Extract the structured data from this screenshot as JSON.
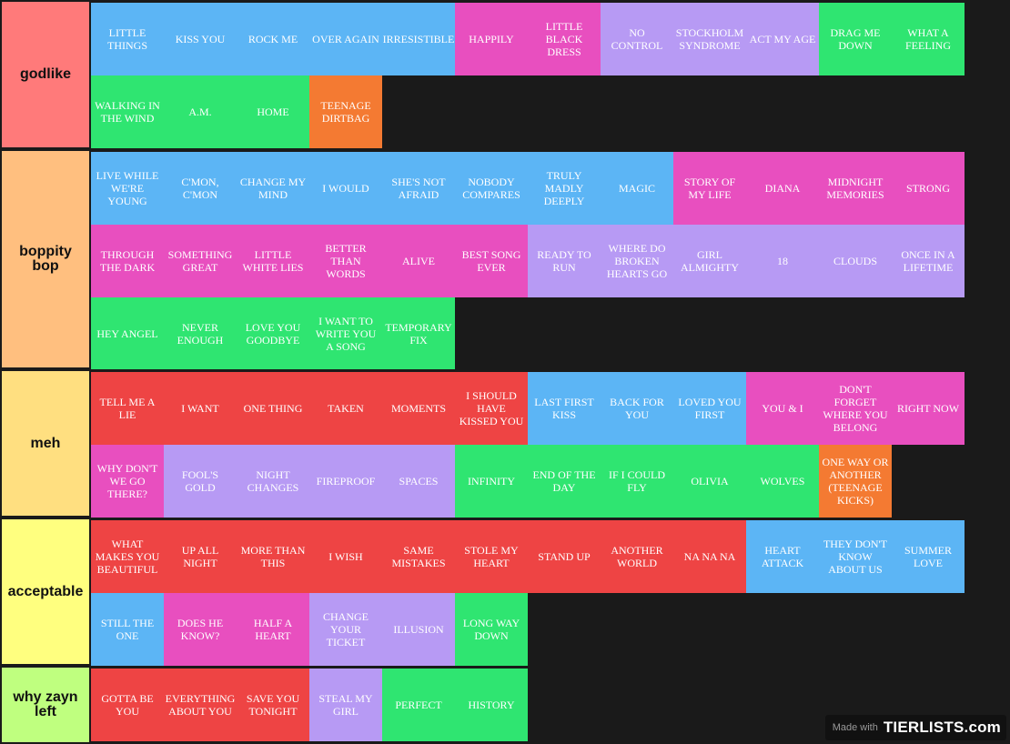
{
  "colors": {
    "blue": "#5cb5f5",
    "pink": "#e84fbf",
    "purple": "#b79af4",
    "green": "#2fe571",
    "orange": "#f47a32",
    "red": "#ee4444"
  },
  "tiers": [
    {
      "label": "godlike",
      "color": "#ff7a7a",
      "items": [
        {
          "label": "LITTLE THINGS",
          "color": "blue"
        },
        {
          "label": "KISS YOU",
          "color": "blue"
        },
        {
          "label": "ROCK ME",
          "color": "blue"
        },
        {
          "label": "OVER AGAIN",
          "color": "blue"
        },
        {
          "label": "IRRESISTIBLE",
          "color": "blue"
        },
        {
          "label": "HAPPILY",
          "color": "pink"
        },
        {
          "label": "LITTLE BLACK DRESS",
          "color": "pink"
        },
        {
          "label": "NO CONTROL",
          "color": "purple"
        },
        {
          "label": "STOCKHOLM SYNDROME",
          "color": "purple"
        },
        {
          "label": "ACT MY AGE",
          "color": "purple"
        },
        {
          "label": "DRAG ME DOWN",
          "color": "green"
        },
        {
          "label": "WHAT A FEELING",
          "color": "green"
        },
        {
          "label": "WALKING IN THE WIND",
          "color": "green"
        },
        {
          "label": "A.M.",
          "color": "green"
        },
        {
          "label": "HOME",
          "color": "green"
        },
        {
          "label": "TEENAGE DIRTBAG",
          "color": "orange"
        }
      ]
    },
    {
      "label": "boppity bop",
      "color": "#ffbf7f",
      "items": [
        {
          "label": "LIVE WHILE WE'RE YOUNG",
          "color": "blue"
        },
        {
          "label": "C'MON, C'MON",
          "color": "blue"
        },
        {
          "label": "CHANGE MY MIND",
          "color": "blue"
        },
        {
          "label": "I WOULD",
          "color": "blue"
        },
        {
          "label": "SHE'S NOT AFRAID",
          "color": "blue"
        },
        {
          "label": "NOBODY COMPARES",
          "color": "blue"
        },
        {
          "label": "TRULY MADLY DEEPLY",
          "color": "blue"
        },
        {
          "label": "MAGIC",
          "color": "blue"
        },
        {
          "label": "STORY OF MY LIFE",
          "color": "pink"
        },
        {
          "label": "DIANA",
          "color": "pink"
        },
        {
          "label": "MIDNIGHT MEMORIES",
          "color": "pink"
        },
        {
          "label": "STRONG",
          "color": "pink"
        },
        {
          "label": "THROUGH THE DARK",
          "color": "pink"
        },
        {
          "label": "SOMETHING GREAT",
          "color": "pink"
        },
        {
          "label": "LITTLE WHITE LIES",
          "color": "pink"
        },
        {
          "label": "BETTER THAN WORDS",
          "color": "pink"
        },
        {
          "label": "ALIVE",
          "color": "pink"
        },
        {
          "label": "BEST SONG EVER",
          "color": "pink"
        },
        {
          "label": "READY TO RUN",
          "color": "purple"
        },
        {
          "label": "WHERE DO BROKEN HEARTS GO",
          "color": "purple"
        },
        {
          "label": "GIRL ALMIGHTY",
          "color": "purple"
        },
        {
          "label": "18",
          "color": "purple"
        },
        {
          "label": "CLOUDS",
          "color": "purple"
        },
        {
          "label": "ONCE IN A LIFETIME",
          "color": "purple"
        },
        {
          "label": "HEY ANGEL",
          "color": "green"
        },
        {
          "label": "NEVER ENOUGH",
          "color": "green"
        },
        {
          "label": "LOVE YOU GOODBYE",
          "color": "green"
        },
        {
          "label": "I WANT TO WRITE YOU A SONG",
          "color": "green"
        },
        {
          "label": "TEMPORARY FIX",
          "color": "green"
        }
      ]
    },
    {
      "label": "meh",
      "color": "#ffdf80",
      "items": [
        {
          "label": "TELL ME A LIE",
          "color": "red"
        },
        {
          "label": "I WANT",
          "color": "red"
        },
        {
          "label": "ONE THING",
          "color": "red"
        },
        {
          "label": "TAKEN",
          "color": "red"
        },
        {
          "label": "MOMENTS",
          "color": "red"
        },
        {
          "label": "I SHOULD HAVE KISSED YOU",
          "color": "red"
        },
        {
          "label": "LAST FIRST KISS",
          "color": "blue"
        },
        {
          "label": "BACK FOR YOU",
          "color": "blue"
        },
        {
          "label": "LOVED YOU FIRST",
          "color": "blue"
        },
        {
          "label": "YOU & I",
          "color": "pink"
        },
        {
          "label": "DON'T FORGET WHERE YOU BELONG",
          "color": "pink"
        },
        {
          "label": "RIGHT NOW",
          "color": "pink"
        },
        {
          "label": "WHY DON'T WE GO THERE?",
          "color": "pink"
        },
        {
          "label": "FOOL'S GOLD",
          "color": "purple"
        },
        {
          "label": "NIGHT CHANGES",
          "color": "purple"
        },
        {
          "label": "FIREPROOF",
          "color": "purple"
        },
        {
          "label": "SPACES",
          "color": "purple"
        },
        {
          "label": "INFINITY",
          "color": "green"
        },
        {
          "label": "END OF THE DAY",
          "color": "green"
        },
        {
          "label": "IF I COULD FLY",
          "color": "green"
        },
        {
          "label": "OLIVIA",
          "color": "green"
        },
        {
          "label": "WOLVES",
          "color": "green"
        },
        {
          "label": "ONE WAY OR ANOTHER (TEENAGE KICKS)",
          "color": "orange"
        }
      ]
    },
    {
      "label": "acceptable",
      "color": "#ffff7f",
      "items": [
        {
          "label": "WHAT MAKES YOU BEAUTIFUL",
          "color": "red"
        },
        {
          "label": "UP ALL NIGHT",
          "color": "red"
        },
        {
          "label": "MORE THAN THIS",
          "color": "red"
        },
        {
          "label": "I WISH",
          "color": "red"
        },
        {
          "label": "SAME MISTAKES",
          "color": "red"
        },
        {
          "label": "STOLE MY HEART",
          "color": "red"
        },
        {
          "label": "STAND UP",
          "color": "red"
        },
        {
          "label": "ANOTHER WORLD",
          "color": "red"
        },
        {
          "label": "NA NA NA",
          "color": "red"
        },
        {
          "label": "HEART ATTACK",
          "color": "blue"
        },
        {
          "label": "THEY DON'T KNOW ABOUT US",
          "color": "blue"
        },
        {
          "label": "SUMMER LOVE",
          "color": "blue"
        },
        {
          "label": "STILL THE ONE",
          "color": "blue"
        },
        {
          "label": "DOES HE KNOW?",
          "color": "pink"
        },
        {
          "label": "HALF A HEART",
          "color": "pink"
        },
        {
          "label": "CHANGE YOUR TICKET",
          "color": "purple"
        },
        {
          "label": "ILLUSION",
          "color": "purple"
        },
        {
          "label": "LONG WAY DOWN",
          "color": "green"
        }
      ]
    },
    {
      "label": "why zayn left",
      "color": "#bfff7f",
      "items": [
        {
          "label": "GOTTA BE YOU",
          "color": "red"
        },
        {
          "label": "EVERYTHING ABOUT YOU",
          "color": "red"
        },
        {
          "label": "SAVE YOU TONIGHT",
          "color": "red"
        },
        {
          "label": "STEAL MY GIRL",
          "color": "purple"
        },
        {
          "label": "PERFECT",
          "color": "green"
        },
        {
          "label": "HISTORY",
          "color": "green"
        }
      ]
    }
  ],
  "watermark": {
    "made_with": "Made with",
    "logo": "TIERLISTS.com"
  }
}
